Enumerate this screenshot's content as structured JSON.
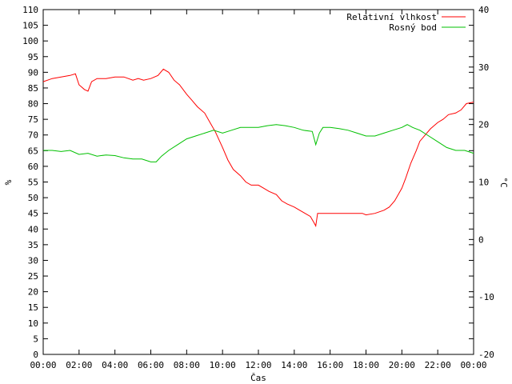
{
  "chart_data": {
    "type": "line",
    "title": "",
    "xlabel": "Čas",
    "ylabel_left": "%",
    "ylabel_right": "°C",
    "x_ticks": [
      "00:00",
      "02:00",
      "04:00",
      "06:00",
      "08:00",
      "10:00",
      "12:00",
      "14:00",
      "16:00",
      "18:00",
      "20:00",
      "22:00",
      "00:00"
    ],
    "xlim_hours": [
      0,
      24
    ],
    "ylim_left": [
      0,
      110
    ],
    "ytick_step_left": 5,
    "ylim_right": [
      -20,
      40
    ],
    "ytick_step_right": 10,
    "grid": false,
    "legend_position": "top-right",
    "series": [
      {
        "name": "Relativní vlhkost",
        "axis": "left",
        "color": "#ff0000",
        "x": [
          0,
          0.5,
          1.0,
          1.5,
          1.8,
          2.0,
          2.3,
          2.5,
          2.7,
          3.0,
          3.5,
          4.0,
          4.5,
          5.0,
          5.3,
          5.6,
          6.0,
          6.4,
          6.7,
          7.0,
          7.3,
          7.6,
          8.0,
          8.3,
          8.6,
          9.0,
          9.3,
          9.6,
          10.0,
          10.3,
          10.6,
          11.0,
          11.3,
          11.6,
          12.0,
          12.3,
          12.6,
          13.0,
          13.3,
          13.6,
          14.0,
          14.3,
          14.6,
          14.9,
          15.1,
          15.2,
          15.3,
          15.6,
          16.0,
          16.5,
          17.0,
          17.5,
          17.8,
          18.0,
          18.5,
          19.0,
          19.3,
          19.6,
          20.0,
          20.2,
          20.5,
          20.8,
          21.0,
          21.3,
          21.6,
          22.0,
          22.3,
          22.6,
          23.0,
          23.3,
          23.6,
          24.0
        ],
        "y": [
          87,
          88,
          88.5,
          89,
          89.5,
          86,
          84.5,
          84,
          87,
          88,
          88,
          88.5,
          88.5,
          87.5,
          88,
          87.5,
          88,
          89,
          91,
          90,
          87.5,
          86,
          83,
          81,
          79,
          77,
          74,
          71,
          66,
          62,
          59,
          57,
          55,
          54,
          54,
          53,
          52,
          51,
          49,
          48,
          47,
          46,
          45,
          44,
          42,
          41,
          45,
          45,
          45,
          45,
          45,
          45,
          45,
          44.5,
          45,
          46,
          47,
          49,
          53,
          56,
          61,
          65,
          68,
          70,
          72,
          74,
          75,
          76.5,
          77,
          78,
          80,
          80.5
        ]
      },
      {
        "name": "Rosný bod",
        "axis": "right",
        "color": "#00c000",
        "x": [
          0,
          0.5,
          1.0,
          1.5,
          2.0,
          2.5,
          3.0,
          3.5,
          4.0,
          4.5,
          5.0,
          5.5,
          6.0,
          6.3,
          6.6,
          7.0,
          7.5,
          8.0,
          8.5,
          9.0,
          9.5,
          10.0,
          10.5,
          11.0,
          11.5,
          12.0,
          12.5,
          13.0,
          13.5,
          14.0,
          14.5,
          15.0,
          15.2,
          15.4,
          15.6,
          16.0,
          16.5,
          17.0,
          17.5,
          18.0,
          18.5,
          19.0,
          19.5,
          20.0,
          20.3,
          20.6,
          21.0,
          21.5,
          22.0,
          22.5,
          23.0,
          23.5,
          24.0
        ],
        "y": [
          15.5,
          15.5,
          15.3,
          15.5,
          14.8,
          15,
          14.5,
          14.7,
          14.6,
          14.2,
          14,
          14,
          13.5,
          13.5,
          14.5,
          15.5,
          16.5,
          17.5,
          18,
          18.5,
          19,
          18.5,
          19,
          19.5,
          19.5,
          19.5,
          19.8,
          20,
          19.8,
          19.5,
          19,
          18.8,
          16.5,
          18.5,
          19.5,
          19.5,
          19.3,
          19,
          18.5,
          18,
          18,
          18.5,
          19,
          19.5,
          20,
          19.5,
          19,
          18,
          17,
          16,
          15.5,
          15.5,
          15
        ]
      }
    ]
  }
}
